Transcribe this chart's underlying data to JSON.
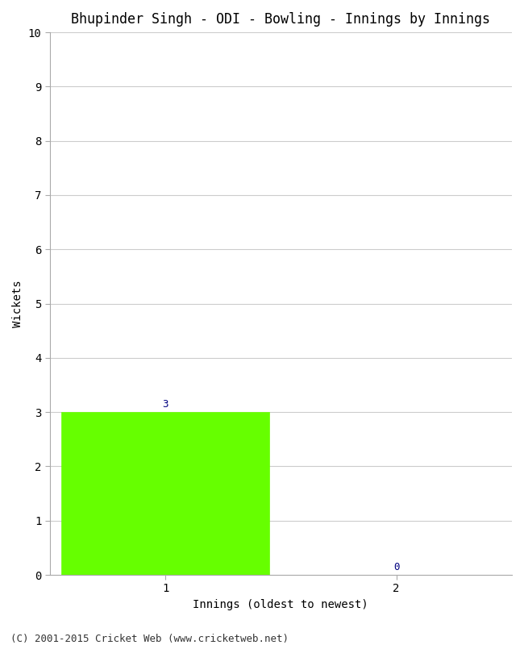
{
  "title": "Bhupinder Singh - ODI - Bowling - Innings by Innings",
  "xlabel": "Innings (oldest to newest)",
  "ylabel": "Wickets",
  "categories": [
    1,
    2
  ],
  "values": [
    3,
    0
  ],
  "bar_color": "#66ff00",
  "bar_edgecolor": "#66ff00",
  "ylim": [
    0,
    10
  ],
  "yticks": [
    0,
    1,
    2,
    3,
    4,
    5,
    6,
    7,
    8,
    9,
    10
  ],
  "xticks": [
    1,
    2
  ],
  "annotation_color": "#000080",
  "annotation_fontsize": 9,
  "title_fontsize": 12,
  "label_fontsize": 10,
  "tick_fontsize": 10,
  "footer": "(C) 2001-2015 Cricket Web (www.cricketweb.net)",
  "footer_fontsize": 9,
  "background_color": "#ffffff",
  "bar_width": 0.9,
  "grid_color": "#cccccc",
  "xlim": [
    0.5,
    2.5
  ]
}
